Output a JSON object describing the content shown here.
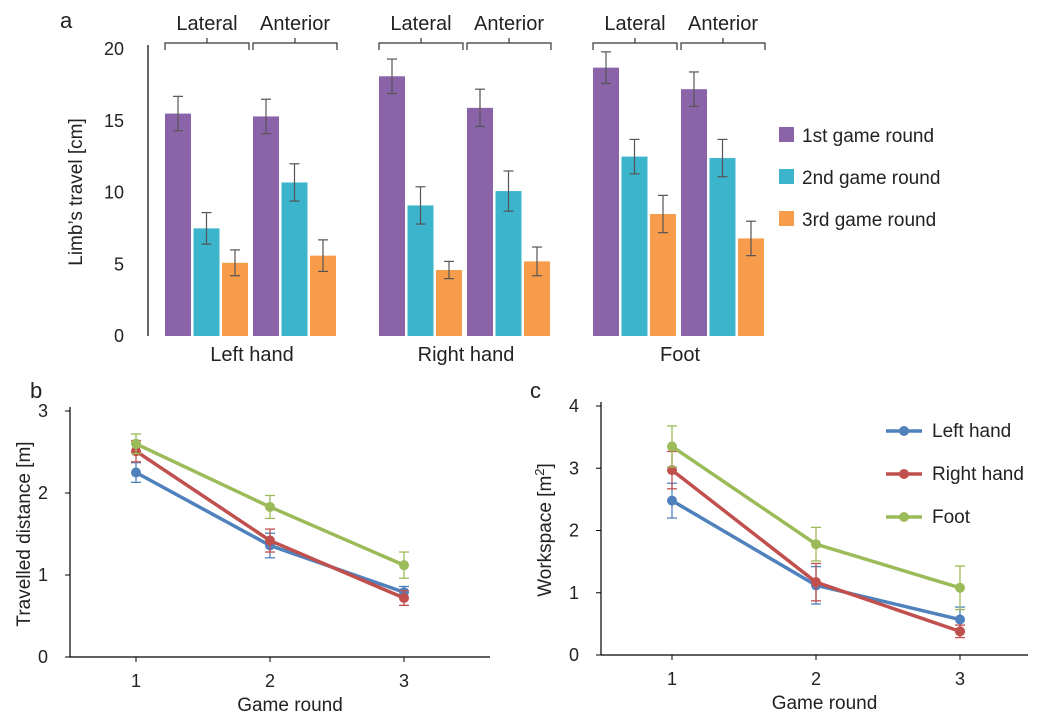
{
  "panels": {
    "a": "a",
    "b": "b",
    "c": "c"
  },
  "chart_data": [
    {
      "panel": "a",
      "type": "bar",
      "ylabel": "Limb’s travel [cm]",
      "ylim": [
        0,
        20
      ],
      "yticks": [
        0,
        5,
        10,
        15,
        20
      ],
      "groups": [
        "Left hand",
        "Right hand",
        "Foot"
      ],
      "subgroups": [
        "Lateral",
        "Anterior"
      ],
      "series": [
        {
          "name": "1st game round",
          "color": "#8B63A8",
          "values": [
            15.5,
            15.3,
            18.1,
            15.9,
            18.7,
            17.2
          ],
          "errors": [
            1.2,
            1.2,
            1.2,
            1.3,
            1.1,
            1.2
          ]
        },
        {
          "name": "2nd game round",
          "color": "#3CB4CB",
          "values": [
            7.5,
            10.7,
            9.1,
            10.1,
            12.5,
            12.4
          ],
          "errors": [
            1.1,
            1.3,
            1.3,
            1.4,
            1.2,
            1.3
          ]
        },
        {
          "name": "3rd game round",
          "color": "#F69C4B",
          "values": [
            5.1,
            5.6,
            4.6,
            5.2,
            8.5,
            6.8
          ],
          "errors": [
            0.9,
            1.1,
            0.6,
            1.0,
            1.3,
            1.2
          ]
        }
      ],
      "legend": "right"
    },
    {
      "panel": "b",
      "type": "line",
      "xlabel": "Game round",
      "ylabel": "Travelled distance [m]",
      "x": [
        1,
        2,
        3
      ],
      "ylim": [
        0,
        3
      ],
      "yticks": [
        0,
        1,
        2,
        3
      ],
      "series": [
        {
          "name": "Left hand",
          "color": "#4F81BD",
          "values": [
            2.25,
            1.36,
            0.79
          ],
          "errors": [
            0.12,
            0.15,
            0.07
          ]
        },
        {
          "name": "Right hand",
          "color": "#C0504D",
          "values": [
            2.51,
            1.42,
            0.72
          ],
          "errors": [
            0.13,
            0.14,
            0.09
          ]
        },
        {
          "name": "Foot",
          "color": "#9BBB59",
          "values": [
            2.6,
            1.83,
            1.12
          ],
          "errors": [
            0.12,
            0.14,
            0.16
          ]
        }
      ]
    },
    {
      "panel": "c",
      "type": "line",
      "xlabel": "Game round",
      "ylabel": "Workspace [m2]",
      "x": [
        1,
        2,
        3
      ],
      "ylim": [
        0,
        4
      ],
      "yticks": [
        0,
        1,
        2,
        3,
        4
      ],
      "series": [
        {
          "name": "Left hand",
          "color": "#4F81BD",
          "values": [
            2.48,
            1.12,
            0.57
          ],
          "errors": [
            0.28,
            0.3,
            0.2
          ]
        },
        {
          "name": "Right hand",
          "color": "#C0504D",
          "values": [
            2.97,
            1.17,
            0.38
          ],
          "errors": [
            0.3,
            0.3,
            0.1
          ]
        },
        {
          "name": "Foot",
          "color": "#9BBB59",
          "values": [
            3.35,
            1.78,
            1.08
          ],
          "errors": [
            0.33,
            0.27,
            0.35
          ]
        }
      ],
      "legend": "top-right"
    }
  ]
}
